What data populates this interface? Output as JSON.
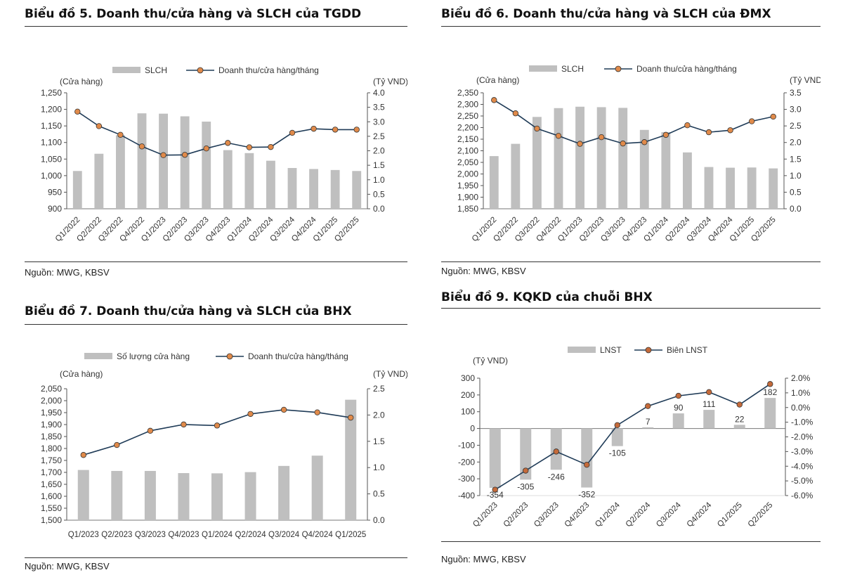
{
  "source": "Nguồn: MWG, KBSV",
  "chart_data": [
    {
      "type": "bar",
      "title": "Biểu đồ 5. Doanh thu/cửa hàng và SLCH của TGDD",
      "left_unit": "(Cửa hàng)",
      "right_unit": "(Tỷ VND)",
      "categories": [
        "Q1/2022",
        "Q2/2022",
        "Q3/2022",
        "Q4/2022",
        "Q1/2023",
        "Q2/2023",
        "Q3/2023",
        "Q4/2023",
        "Q1/2024",
        "Q2/2024",
        "Q3/2024",
        "Q4/2024",
        "Q1/2025",
        "Q2/2025"
      ],
      "bar_series": {
        "name": "SLCH",
        "values": [
          1014,
          1066,
          1122,
          1188,
          1187,
          1179,
          1163,
          1077,
          1068,
          1045,
          1023,
          1020,
          1017,
          1014
        ],
        "color": "#bfbfbf"
      },
      "line_series": {
        "name": "Doanh thu/cửa hàng/tháng",
        "values": [
          3.35,
          2.85,
          2.55,
          2.15,
          1.85,
          1.86,
          2.08,
          2.27,
          2.12,
          2.13,
          2.62,
          2.76,
          2.73,
          2.73
        ],
        "color": "#1f3b57",
        "marker": "#e08a4a"
      },
      "left_ticks": [
        "900",
        "950",
        "1,000",
        "1,050",
        "1,100",
        "1,150",
        "1,200",
        "1,250"
      ],
      "right_ticks": [
        "0.0",
        "0.5",
        "1.0",
        "1.5",
        "2.0",
        "2.5",
        "3.0",
        "3.5",
        "4.0"
      ],
      "left_range": [
        900,
        1250
      ],
      "right_range": [
        0,
        4
      ],
      "rotate_x": true
    },
    {
      "type": "bar",
      "title": "Biểu đồ 6. Doanh thu/cửa hàng và SLCH của ĐMX",
      "left_unit": "(Cửa hàng)",
      "right_unit": "(Tỷ VND)",
      "categories": [
        "Q1/2022",
        "Q2/2022",
        "Q3/2022",
        "Q4/2022",
        "Q1/2023",
        "Q2/2023",
        "Q3/2023",
        "Q4/2023",
        "Q1/2024",
        "Q2/2024",
        "Q3/2024",
        "Q4/2024",
        "Q1/2025",
        "Q2/2025"
      ],
      "bar_series": {
        "name": "SLCH",
        "values": [
          2077,
          2130,
          2246,
          2284,
          2290,
          2288,
          2285,
          2190,
          2180,
          2093,
          2030,
          2027,
          2028,
          2024
        ],
        "color": "#bfbfbf"
      },
      "line_series": {
        "name": "Doanh thu/cửa hàng/tháng",
        "values": [
          3.28,
          2.88,
          2.42,
          2.2,
          1.96,
          2.16,
          1.97,
          2.01,
          2.23,
          2.52,
          2.31,
          2.37,
          2.64,
          2.78
        ],
        "color": "#1f3b57",
        "marker": "#e08a4a"
      },
      "left_ticks": [
        "1,850",
        "1,900",
        "1,950",
        "2,000",
        "2,050",
        "2,100",
        "2,150",
        "2,200",
        "2,250",
        "2,300",
        "2,350"
      ],
      "right_ticks": [
        "0.0",
        "0.5",
        "1.0",
        "1.5",
        "2.0",
        "2.5",
        "3.0",
        "3.5"
      ],
      "left_range": [
        1850,
        2350
      ],
      "right_range": [
        0,
        3.5
      ],
      "rotate_x": true
    },
    {
      "type": "bar",
      "title": "Biểu đồ 7. Doanh thu/cửa hàng và SLCH của BHX",
      "left_unit": "(Cửa hàng)",
      "right_unit": "(Tỷ VND)",
      "categories": [
        "Q1/2023",
        "Q2/2023",
        "Q3/2023",
        "Q4/2023",
        "Q1/2024",
        "Q2/2024",
        "Q3/2024",
        "Q4/2024",
        "Q1/2025"
      ],
      "bar_series": {
        "name": "Số lượng cửa hàng",
        "values": [
          1710,
          1706,
          1706,
          1697,
          1696,
          1701,
          1727,
          1770,
          2004
        ],
        "color": "#bfbfbf"
      },
      "line_series": {
        "name": "Doanh thu/cửa hàng/tháng",
        "values": [
          1.24,
          1.43,
          1.7,
          1.82,
          1.8,
          2.02,
          2.1,
          2.05,
          1.95
        ],
        "color": "#1f3b57",
        "marker": "#e08a4a"
      },
      "left_ticks": [
        "1,500",
        "1,550",
        "1,600",
        "1,650",
        "1,700",
        "1,750",
        "1,800",
        "1,850",
        "1,900",
        "1,950",
        "2,000",
        "2,050"
      ],
      "right_ticks": [
        "0.0",
        "0.5",
        "1.0",
        "1.5",
        "2.0",
        "2.5"
      ],
      "left_range": [
        1500,
        2050
      ],
      "right_range": [
        0,
        2.5
      ],
      "rotate_x": false
    },
    {
      "type": "bar",
      "title": "Biểu đồ 9. KQKD của chuỗi BHX",
      "left_unit": "(Tỷ VND)",
      "right_unit": "",
      "categories": [
        "Q1/2023",
        "Q2/2023",
        "Q3/2023",
        "Q4/2023",
        "Q1/2024",
        "Q2/2024",
        "Q3/2024",
        "Q4/2024",
        "Q1/2025",
        "Q2/2025"
      ],
      "bar_series": {
        "name": "LNST",
        "values": [
          -354,
          -305,
          -246,
          -352,
          -105,
          7,
          90,
          111,
          22,
          182
        ],
        "color": "#bfbfbf"
      },
      "line_series": {
        "name": "Biên LNST",
        "values": [
          -5.6,
          -4.3,
          -3.0,
          -3.9,
          -1.2,
          0.1,
          0.8,
          1.05,
          0.2,
          1.6
        ],
        "color": "#1f3b57",
        "marker": "#c46a3a"
      },
      "data_labels": [
        "-354",
        "-305",
        "-246",
        "-352",
        "-105",
        "7",
        "90",
        "111",
        "22",
        "182"
      ],
      "left_ticks": [
        "-400",
        "-300",
        "-200",
        "-100",
        "0",
        "100",
        "200",
        "300"
      ],
      "right_ticks": [
        "-6.0%",
        "-5.0%",
        "-4.0%",
        "-3.0%",
        "-2.0%",
        "-1.0%",
        "0.0%",
        "1.0%",
        "2.0%"
      ],
      "left_range": [
        -400,
        300
      ],
      "right_range": [
        -6,
        2
      ],
      "rotate_x": true
    }
  ]
}
